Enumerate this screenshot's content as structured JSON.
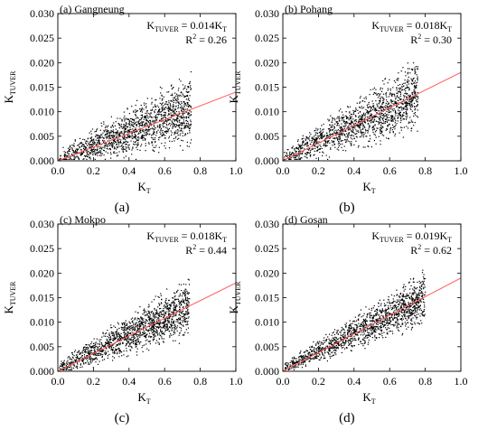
{
  "figure": {
    "xlabel_main": "K",
    "xlabel_sub": "T",
    "ylabel_main": "K",
    "ylabel_sub": "TUVER",
    "xlim": [
      0.0,
      1.0
    ],
    "ylim": [
      0.0,
      0.03
    ],
    "x_ticks": [
      "0.0",
      "0.2",
      "0.4",
      "0.6",
      "0.8",
      "1.0"
    ],
    "y_ticks": [
      "0.000",
      "0.005",
      "0.010",
      "0.015",
      "0.020",
      "0.025",
      "0.030"
    ],
    "colors": {
      "points": "#000000",
      "fit_line": "#ff5a5a",
      "frame": "#000000"
    }
  },
  "chart_data": [
    {
      "type": "scatter",
      "station": "(a) Gangneung",
      "panel_label": "(a)",
      "slope": 0.014,
      "equation": {
        "lhs_main": "K",
        "lhs_sub": "TUVER",
        "rhs": "= 0.014K",
        "rhs_sub": "T"
      },
      "r2": {
        "main": "R",
        "sup": "2",
        "rest": " = 0.26"
      },
      "fit_line": {
        "x": [
          0.0,
          1.0
        ],
        "y": [
          0.0,
          0.014
        ]
      },
      "cloud": {
        "xmax": 0.75,
        "peak": 0.0185,
        "floor": 0.002,
        "scatter": 0.0045,
        "seed": 11
      }
    },
    {
      "type": "scatter",
      "station": "(b) Pohang",
      "panel_label": "(b)",
      "slope": 0.018,
      "equation": {
        "lhs_main": "K",
        "lhs_sub": "TUVER",
        "rhs": "= 0.018K",
        "rhs_sub": "T"
      },
      "r2": {
        "main": "R",
        "sup": "2",
        "rest": " = 0.30"
      },
      "fit_line": {
        "x": [
          0.0,
          1.0
        ],
        "y": [
          0.0,
          0.018
        ]
      },
      "cloud": {
        "xmax": 0.76,
        "peak": 0.0205,
        "floor": 0.0025,
        "scatter": 0.0045,
        "seed": 23
      }
    },
    {
      "type": "scatter",
      "station": "(c) Mokpo",
      "panel_label": "(c)",
      "slope": 0.018,
      "equation": {
        "lhs_main": "K",
        "lhs_sub": "TUVER",
        "rhs": "= 0.018K",
        "rhs_sub": "T"
      },
      "r2": {
        "main": "R",
        "sup": "2",
        "rest": " = 0.44"
      },
      "fit_line": {
        "x": [
          0.0,
          1.0
        ],
        "y": [
          0.0,
          0.018
        ]
      },
      "cloud": {
        "xmax": 0.74,
        "peak": 0.02,
        "floor": 0.0025,
        "scatter": 0.0038,
        "seed": 37
      }
    },
    {
      "type": "scatter",
      "station": "(d) Gosan",
      "panel_label": "(d)",
      "slope": 0.019,
      "equation": {
        "lhs_main": "K",
        "lhs_sub": "TUVER",
        "rhs": "= 0.019K",
        "rhs_sub": "T"
      },
      "r2": {
        "main": "R",
        "sup": "2",
        "rest": " = 0.62"
      },
      "fit_line": {
        "x": [
          0.0,
          1.0
        ],
        "y": [
          0.0,
          0.019
        ]
      },
      "cloud": {
        "xmax": 0.8,
        "peak": 0.021,
        "floor": 0.003,
        "scatter": 0.0032,
        "seed": 53
      }
    }
  ]
}
